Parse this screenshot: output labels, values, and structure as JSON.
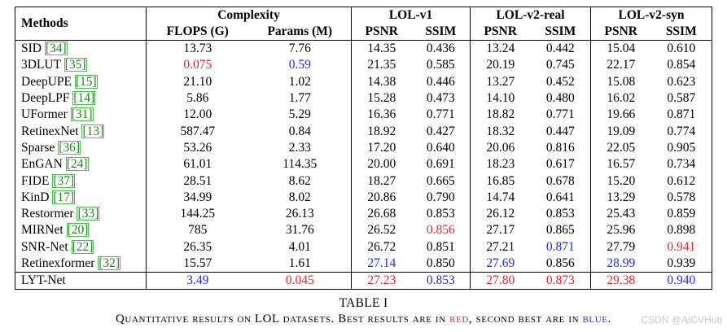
{
  "table": {
    "header": {
      "methods": "Methods",
      "complexity": "Complexity",
      "flops": "FLOPS (G)",
      "params": "Params (M)",
      "lol_v1": "LOL-v1",
      "lol_v2_real": "LOL-v2-real",
      "lol_v2_syn": "LOL-v2-syn",
      "psnr": "PSNR",
      "ssim": "SSIM"
    },
    "rows": [
      {
        "method": "SID",
        "cite": "[34]",
        "flops": "13.73",
        "params": "7.76",
        "v1_psnr": "14.35",
        "v1_ssim": "0.436",
        "real_psnr": "13.24",
        "real_ssim": "0.442",
        "syn_psnr": "15.04",
        "syn_ssim": "0.610"
      },
      {
        "method": "3DLUT",
        "cite": "[35]",
        "flops": "0.075",
        "params": "0.59",
        "v1_psnr": "21.35",
        "v1_ssim": "0.585",
        "real_psnr": "20.19",
        "real_ssim": "0.745",
        "syn_psnr": "22.17",
        "syn_ssim": "0.854"
      },
      {
        "method": "DeepUPE",
        "cite": "[15]",
        "flops": "21.10",
        "params": "1.02",
        "v1_psnr": "14.38",
        "v1_ssim": "0.446",
        "real_psnr": "13.27",
        "real_ssim": "0.452",
        "syn_psnr": "15.08",
        "syn_ssim": "0.623"
      },
      {
        "method": "DeepLPF",
        "cite": "[14]",
        "flops": "5.86",
        "params": "1.77",
        "v1_psnr": "15.28",
        "v1_ssim": "0.473",
        "real_psnr": "14.10",
        "real_ssim": "0.480",
        "syn_psnr": "16.02",
        "syn_ssim": "0.587"
      },
      {
        "method": "UFormer",
        "cite": "[31]",
        "flops": "12.00",
        "params": "5.29",
        "v1_psnr": "16.36",
        "v1_ssim": "0.771",
        "real_psnr": "18.82",
        "real_ssim": "0.771",
        "syn_psnr": "19.66",
        "syn_ssim": "0.871"
      },
      {
        "method": "RetinexNet",
        "cite": "[13]",
        "flops": "587.47",
        "params": "0.84",
        "v1_psnr": "18.92",
        "v1_ssim": "0.427",
        "real_psnr": "18.32",
        "real_ssim": "0.447",
        "syn_psnr": "19.09",
        "syn_ssim": "0.774"
      },
      {
        "method": "Sparse",
        "cite": "[36]",
        "flops": "53.26",
        "params": "2.33",
        "v1_psnr": "17.20",
        "v1_ssim": "0.640",
        "real_psnr": "20.06",
        "real_ssim": "0.816",
        "syn_psnr": "22.05",
        "syn_ssim": "0.905"
      },
      {
        "method": "EnGAN",
        "cite": "[24]",
        "flops": "61.01",
        "params": "114.35",
        "v1_psnr": "20.00",
        "v1_ssim": "0.691",
        "real_psnr": "18.23",
        "real_ssim": "0.617",
        "syn_psnr": "16.57",
        "syn_ssim": "0.734"
      },
      {
        "method": "FIDE",
        "cite": "[37]",
        "flops": "28.51",
        "params": "8.62",
        "v1_psnr": "18.27",
        "v1_ssim": "0.665",
        "real_psnr": "16.85",
        "real_ssim": "0.678",
        "syn_psnr": "15.20",
        "syn_ssim": "0.612"
      },
      {
        "method": "KinD",
        "cite": "[17]",
        "flops": "34.99",
        "params": "8.02",
        "v1_psnr": "20.86",
        "v1_ssim": "0.790",
        "real_psnr": "14.74",
        "real_ssim": "0.641",
        "syn_psnr": "13.29",
        "syn_ssim": "0.578"
      },
      {
        "method": "Restormer",
        "cite": "[33]",
        "flops": "144.25",
        "params": "26.13",
        "v1_psnr": "26.68",
        "v1_ssim": "0.853",
        "real_psnr": "26.12",
        "real_ssim": "0.853",
        "syn_psnr": "25.43",
        "syn_ssim": "0.859"
      },
      {
        "method": "MIRNet",
        "cite": "[20]",
        "flops": "785",
        "params": "31.76",
        "v1_psnr": "26.52",
        "v1_ssim": "0.856",
        "real_psnr": "27.17",
        "real_ssim": "0.865",
        "syn_psnr": "25.96",
        "syn_ssim": "0.898"
      },
      {
        "method": "SNR-Net",
        "cite": "[22]",
        "flops": "26.35",
        "params": "4.01",
        "v1_psnr": "26.72",
        "v1_ssim": "0.851",
        "real_psnr": "27.21",
        "real_ssim": "0.871",
        "syn_psnr": "27.79",
        "syn_ssim": "0.941"
      },
      {
        "method": "Retinexformer",
        "cite": "[32]",
        "flops": "15.57",
        "params": "1.61",
        "v1_psnr": "27.14",
        "v1_ssim": "0.850",
        "real_psnr": "27.69",
        "real_ssim": "0.856",
        "syn_psnr": "28.99",
        "syn_ssim": "0.939"
      }
    ],
    "final_row": {
      "method": "LYT-Net",
      "flops": "3.49",
      "params": "0.045",
      "v1_psnr": "27.23",
      "v1_ssim": "0.853",
      "real_psnr": "27.80",
      "real_ssim": "0.873",
      "syn_psnr": "29.38",
      "syn_ssim": "0.940"
    },
    "colors": {
      "best": "#e8262a",
      "second": "#1f2ee6",
      "citation": "#1a8a1a"
    }
  },
  "caption": {
    "label": "TABLE I",
    "text_before": "Quantitative results on LOL datasets. Best results are in ",
    "best_word": "red",
    "text_middle": ", second best are in ",
    "second_word": "blue",
    "text_after": "."
  },
  "watermark": "CSDN @AICVHub"
}
